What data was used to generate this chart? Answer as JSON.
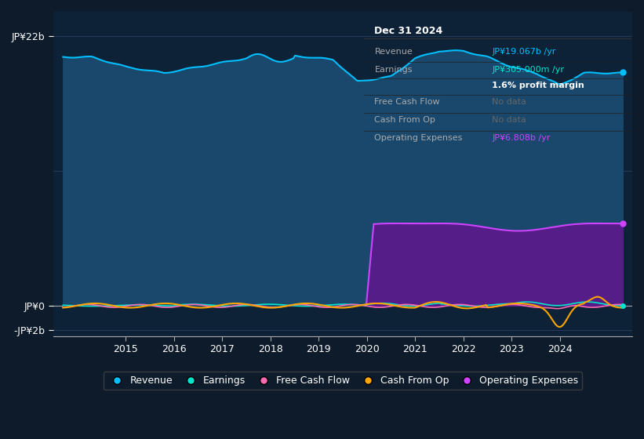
{
  "bg_color": "#0d1b2a",
  "plot_bg_color": "#0d2137",
  "ylabel_top": "JP¥22b",
  "ylabel_zero": "JP¥0",
  "ylabel_neg": "-JP¥2b",
  "ylim": [
    -2.5,
    24
  ],
  "xlim": [
    2013.5,
    2025.5
  ],
  "xticks": [
    2015,
    2016,
    2017,
    2018,
    2019,
    2020,
    2021,
    2022,
    2023,
    2024
  ],
  "revenue_color": "#00bfff",
  "revenue_fill": "#1a4a6e",
  "earnings_color": "#00e5cc",
  "fcf_color": "#ff69b4",
  "cashfromop_color": "#ffa500",
  "opex_color": "#cc44ff",
  "opex_fill": "#5a1a8a",
  "info_box": {
    "title": "Dec 31 2024",
    "rows": [
      {
        "label": "Revenue",
        "value": "JP¥19.067b /yr",
        "value_color": "#00bfff"
      },
      {
        "label": "Earnings",
        "value": "JP¥305.000m /yr",
        "value_color": "#00e5cc"
      },
      {
        "label": "",
        "value": "1.6% profit margin",
        "value_color": "#ffffff"
      },
      {
        "label": "Free Cash Flow",
        "value": "No data",
        "value_color": "#666666"
      },
      {
        "label": "Cash From Op",
        "value": "No data",
        "value_color": "#666666"
      },
      {
        "label": "Operating Expenses",
        "value": "JP¥6.808b /yr",
        "value_color": "#cc44ff"
      }
    ]
  },
  "legend": [
    {
      "label": "Revenue",
      "color": "#00bfff"
    },
    {
      "label": "Earnings",
      "color": "#00e5cc"
    },
    {
      "label": "Free Cash Flow",
      "color": "#ff69b4"
    },
    {
      "label": "Cash From Op",
      "color": "#ffa500"
    },
    {
      "label": "Operating Expenses",
      "color": "#cc44ff"
    }
  ]
}
